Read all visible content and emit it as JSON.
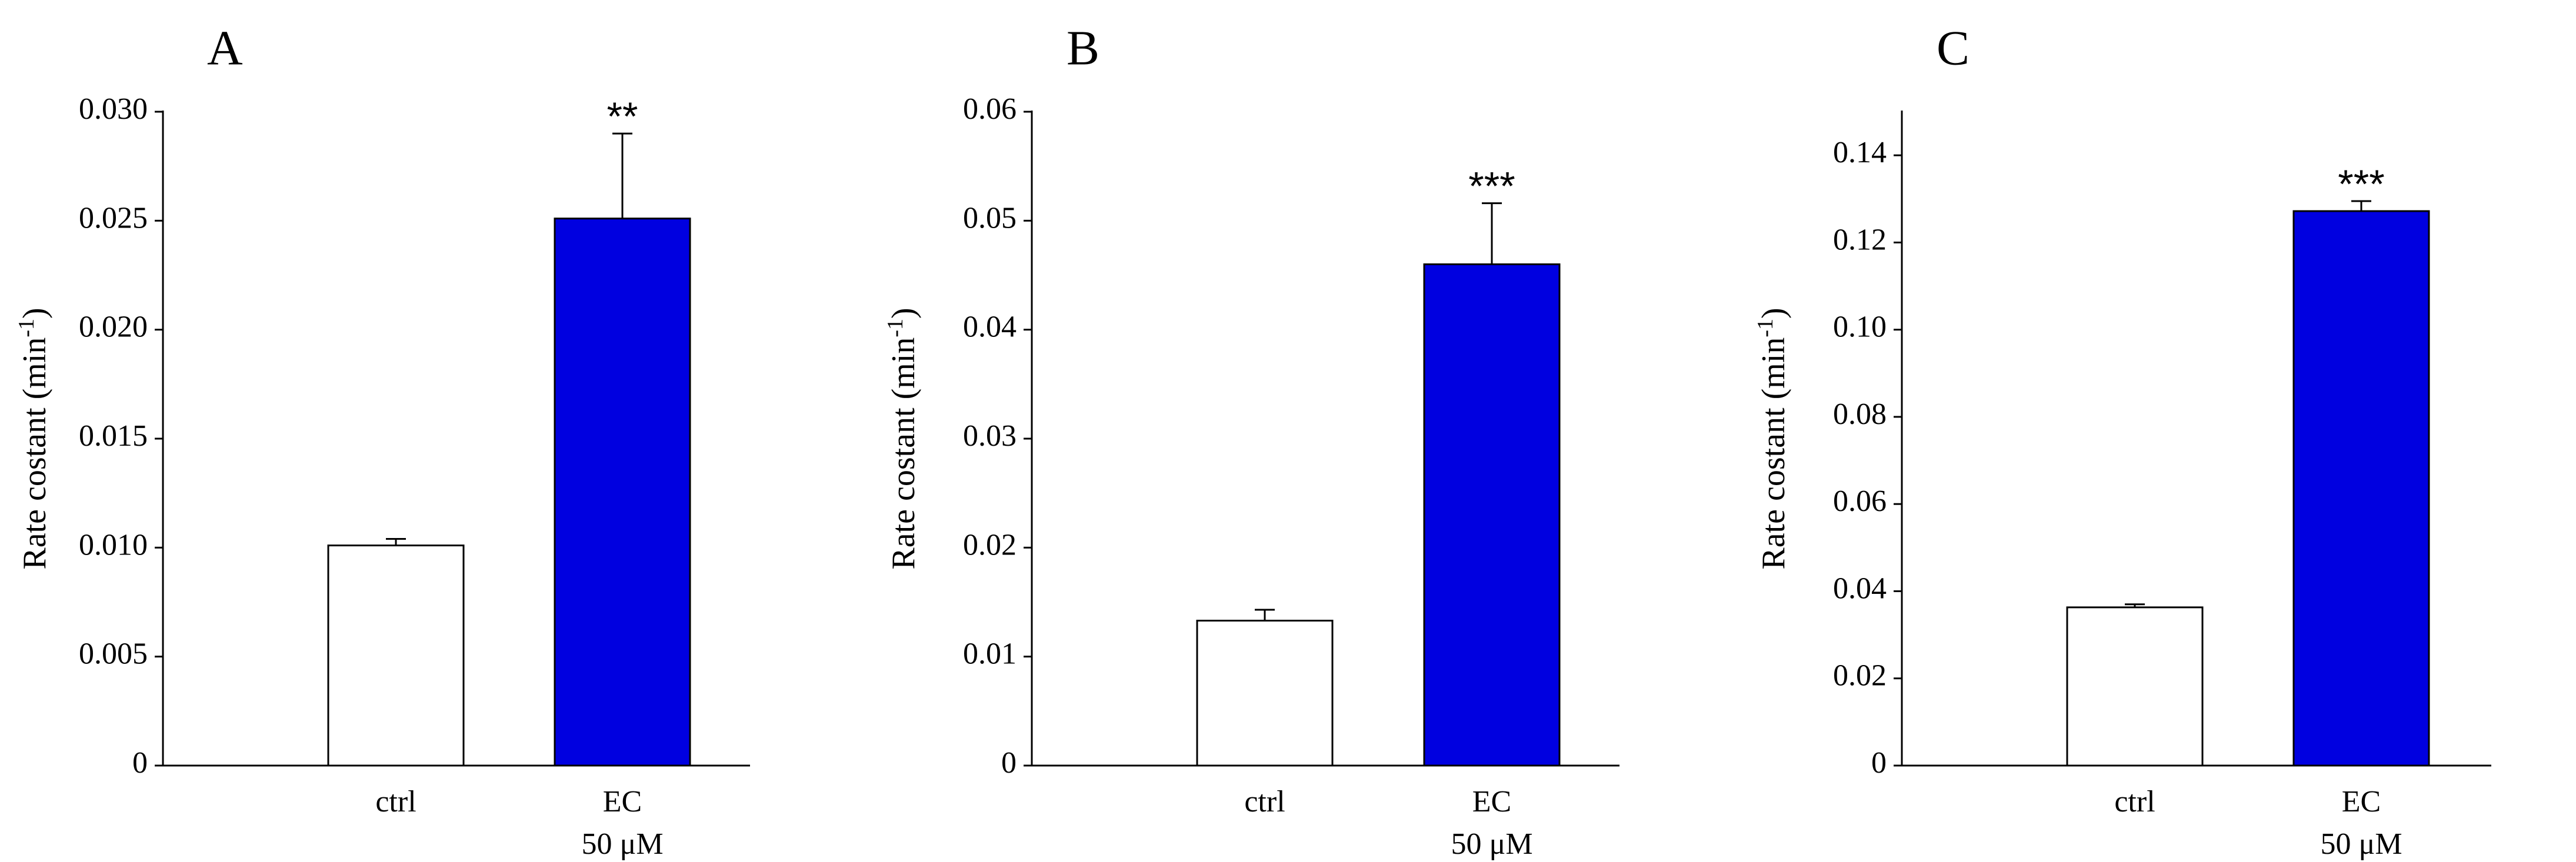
{
  "chart_data": [
    {
      "type": "bar",
      "panel": "A",
      "categories": [
        "ctrl",
        "EC"
      ],
      "category_sublabels": [
        "",
        "50 μM"
      ],
      "values": [
        0.0101,
        0.0251
      ],
      "errors": [
        0.0003,
        0.0039
      ],
      "significance": [
        "",
        "**"
      ],
      "colors": [
        "#ffffff",
        "#0000e0"
      ],
      "ylabel": "Rate costant (min",
      "ylabel_sup": "-1",
      "ylabel_close": ")",
      "ylim": [
        0,
        0.03
      ],
      "yticks": [
        0,
        0.005,
        0.01,
        0.015,
        0.02,
        0.025,
        0.03
      ],
      "ytick_labels": [
        "0",
        "0.005",
        "0.010",
        "0.015",
        "0.020",
        "0.025",
        "0.030"
      ]
    },
    {
      "type": "bar",
      "panel": "B",
      "categories": [
        "ctrl",
        "EC"
      ],
      "category_sublabels": [
        "",
        "50 μM"
      ],
      "values": [
        0.0133,
        0.046
      ],
      "errors": [
        0.001,
        0.0056
      ],
      "significance": [
        "",
        "***"
      ],
      "colors": [
        "#ffffff",
        "#0000e0"
      ],
      "ylabel": "Rate costant (min",
      "ylabel_sup": "-1",
      "ylabel_close": ")",
      "ylim": [
        0,
        0.06
      ],
      "yticks": [
        0,
        0.01,
        0.02,
        0.03,
        0.04,
        0.05,
        0.06
      ],
      "ytick_labels": [
        "0",
        "0.01",
        "0.02",
        "0.03",
        "0.04",
        "0.05",
        "0.06"
      ]
    },
    {
      "type": "bar",
      "panel": "C",
      "categories": [
        "ctrl",
        "EC"
      ],
      "category_sublabels": [
        "",
        "50 μM"
      ],
      "values": [
        0.0363,
        0.1272
      ],
      "errors": [
        0.0007,
        0.0023
      ],
      "significance": [
        "",
        "***"
      ],
      "colors": [
        "#ffffff",
        "#0000e0"
      ],
      "ylabel": "Rate costant (min",
      "ylabel_sup": "-1",
      "ylabel_close": ")",
      "ylim": [
        0,
        0.15
      ],
      "yticks": [
        0,
        0.02,
        0.04,
        0.06,
        0.08,
        0.1,
        0.12,
        0.14
      ],
      "ytick_labels": [
        "0",
        "0.02",
        "0.04",
        "0.06",
        "0.08",
        "0.10",
        "0.12",
        "0.14"
      ]
    }
  ]
}
